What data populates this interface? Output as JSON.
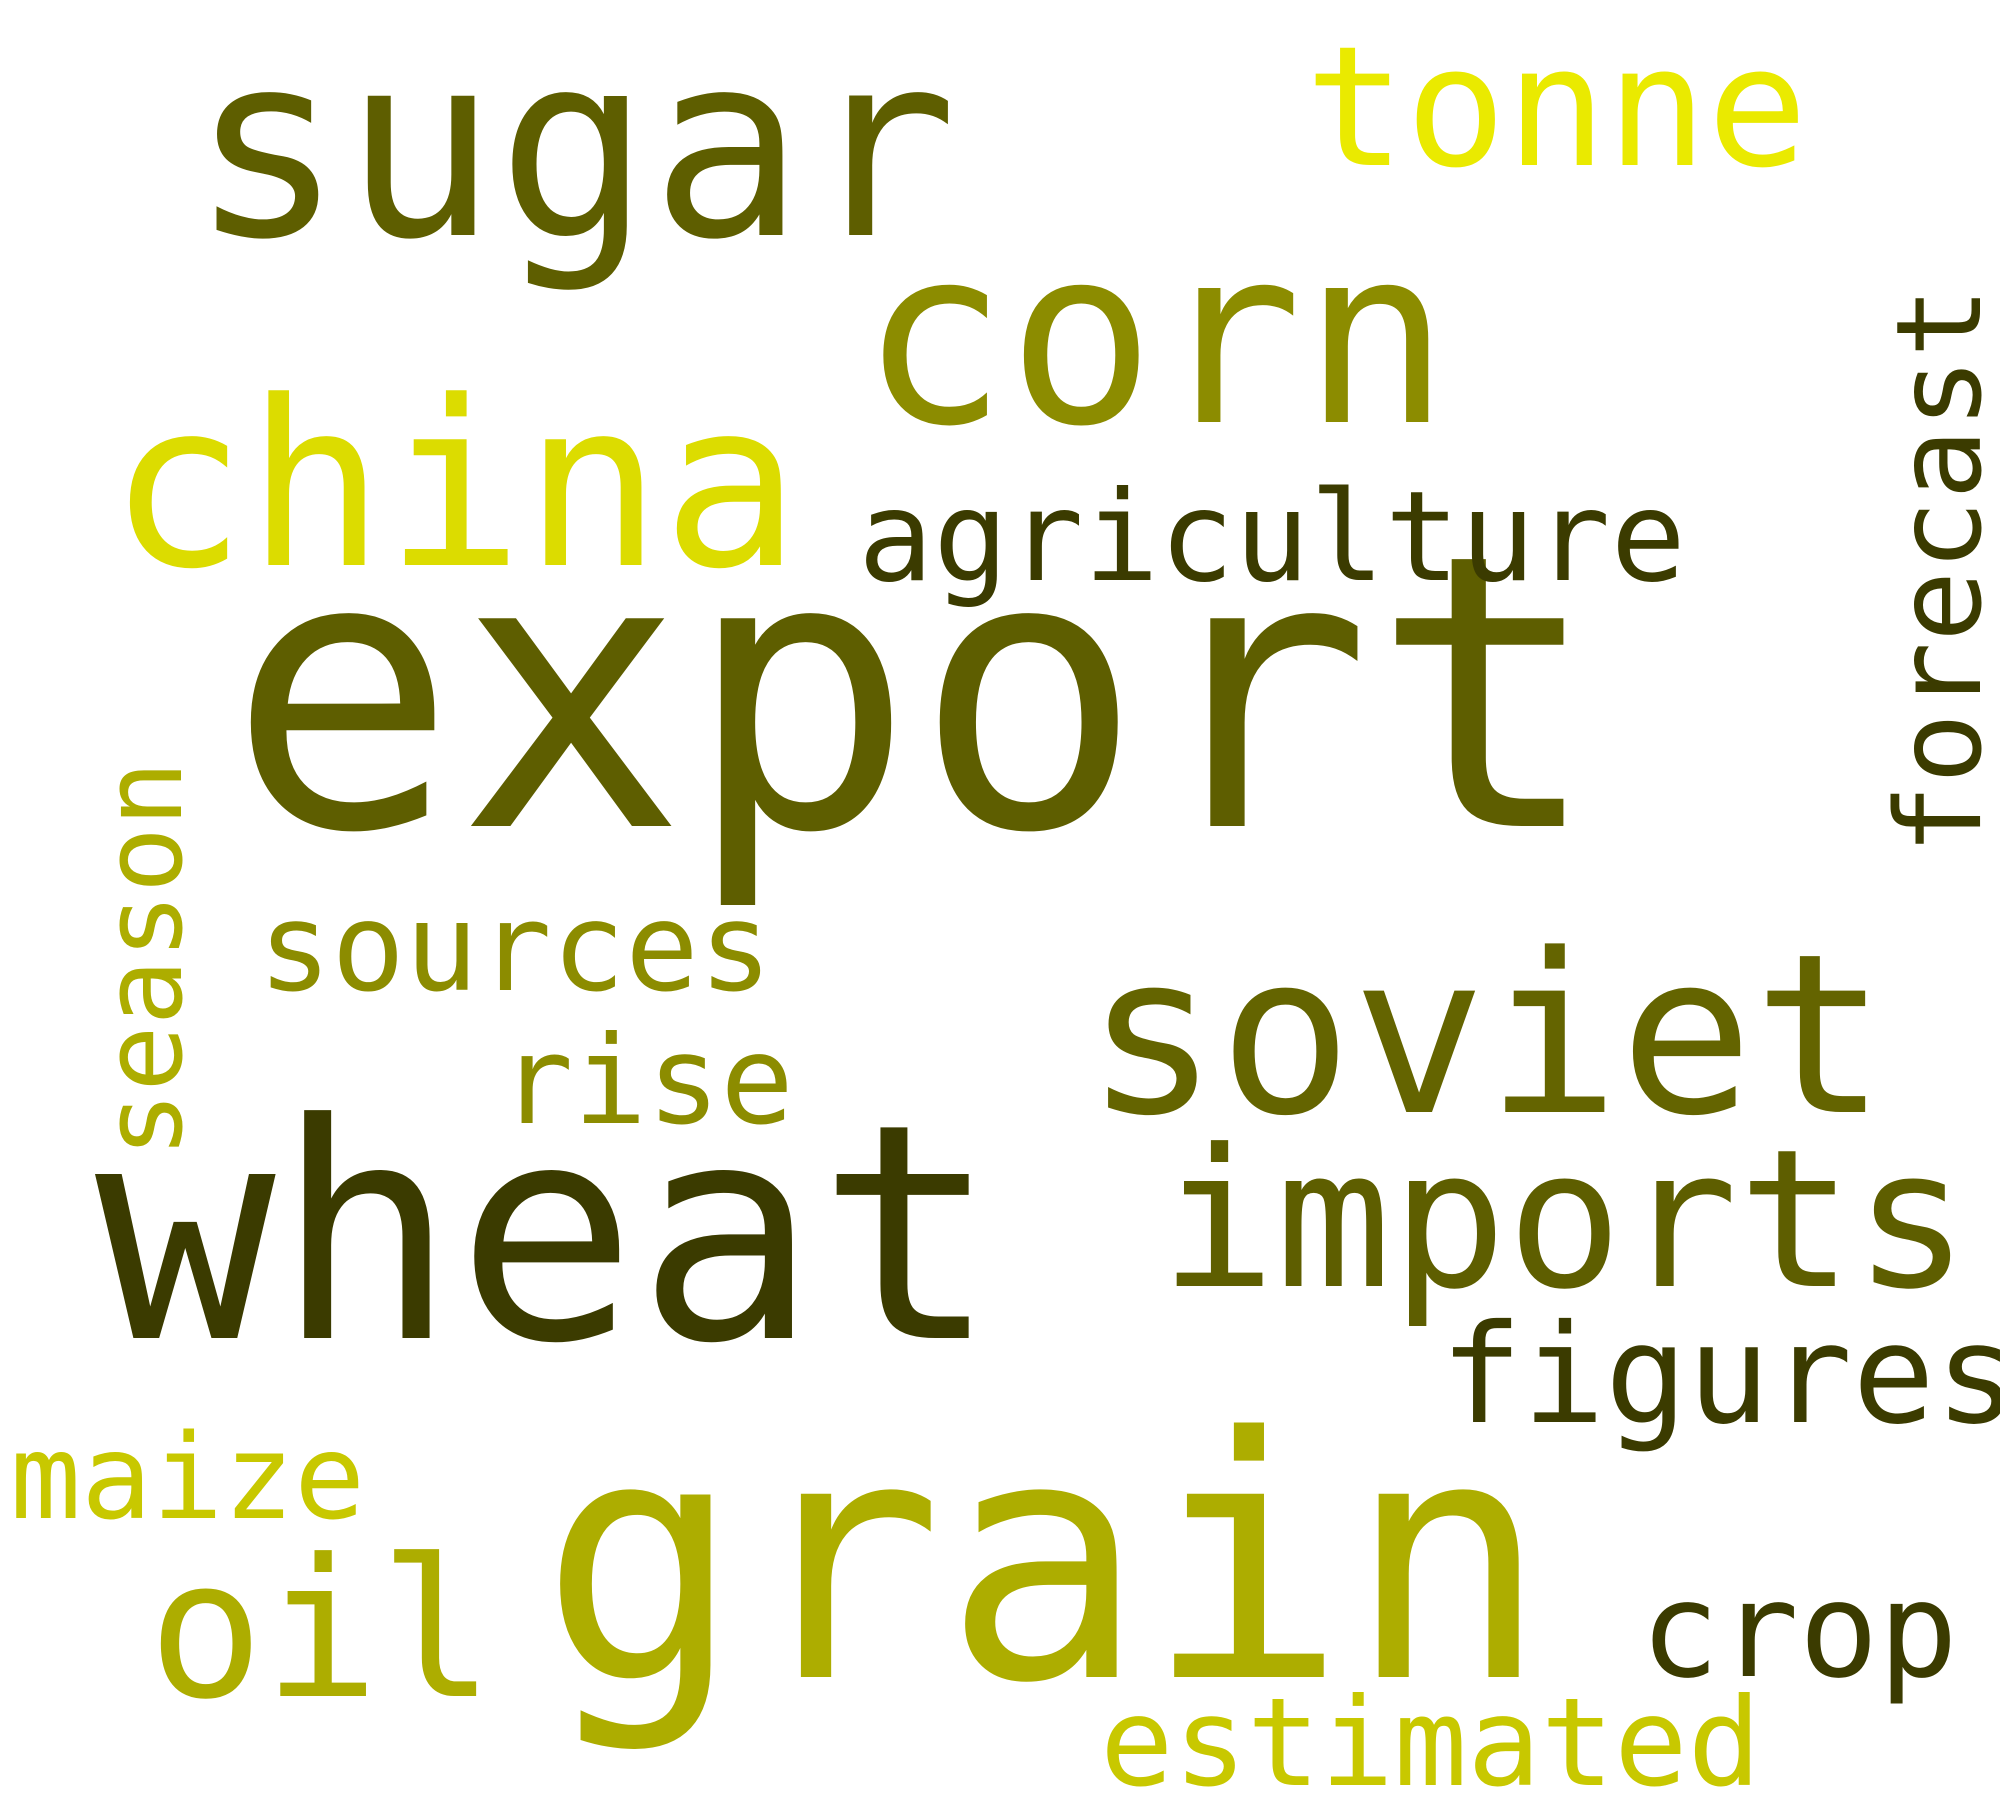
{
  "words": [
    {
      "text": "export",
      "color": "#5e5e00",
      "orientation": "horizontal"
    },
    {
      "text": "grain",
      "color": "#adad00",
      "orientation": "horizontal"
    },
    {
      "text": "wheat",
      "color": "#3b3b00",
      "orientation": "horizontal"
    },
    {
      "text": "sugar",
      "color": "#5e5e00",
      "orientation": "horizontal"
    },
    {
      "text": "corn",
      "color": "#8c8c00",
      "orientation": "horizontal"
    },
    {
      "text": "china",
      "color": "#dcdc00",
      "orientation": "horizontal"
    },
    {
      "text": "soviet",
      "color": "#646400",
      "orientation": "horizontal"
    },
    {
      "text": "imports",
      "color": "#5e5e00",
      "orientation": "horizontal"
    },
    {
      "text": "oil",
      "color": "#adad00",
      "orientation": "horizontal"
    },
    {
      "text": "tonne",
      "color": "#eaea00",
      "orientation": "horizontal"
    },
    {
      "text": "figures",
      "color": "#3b3b00",
      "orientation": "horizontal"
    },
    {
      "text": "crop",
      "color": "#3b3b00",
      "orientation": "horizontal"
    },
    {
      "text": "agriculture",
      "color": "#3b3b00",
      "orientation": "horizontal"
    },
    {
      "text": "sources",
      "color": "#8c8c00",
      "orientation": "horizontal"
    },
    {
      "text": "rise",
      "color": "#8c8c00",
      "orientation": "horizontal"
    },
    {
      "text": "estimated",
      "color": "#c8c800",
      "orientation": "horizontal"
    },
    {
      "text": "forecast",
      "color": "#3b3b00",
      "orientation": "vertical"
    },
    {
      "text": "maize",
      "color": "#c8c800",
      "orientation": "horizontal"
    },
    {
      "text": "season",
      "color": "#adad00",
      "orientation": "vertical"
    }
  ],
  "background": "#ffffff"
}
